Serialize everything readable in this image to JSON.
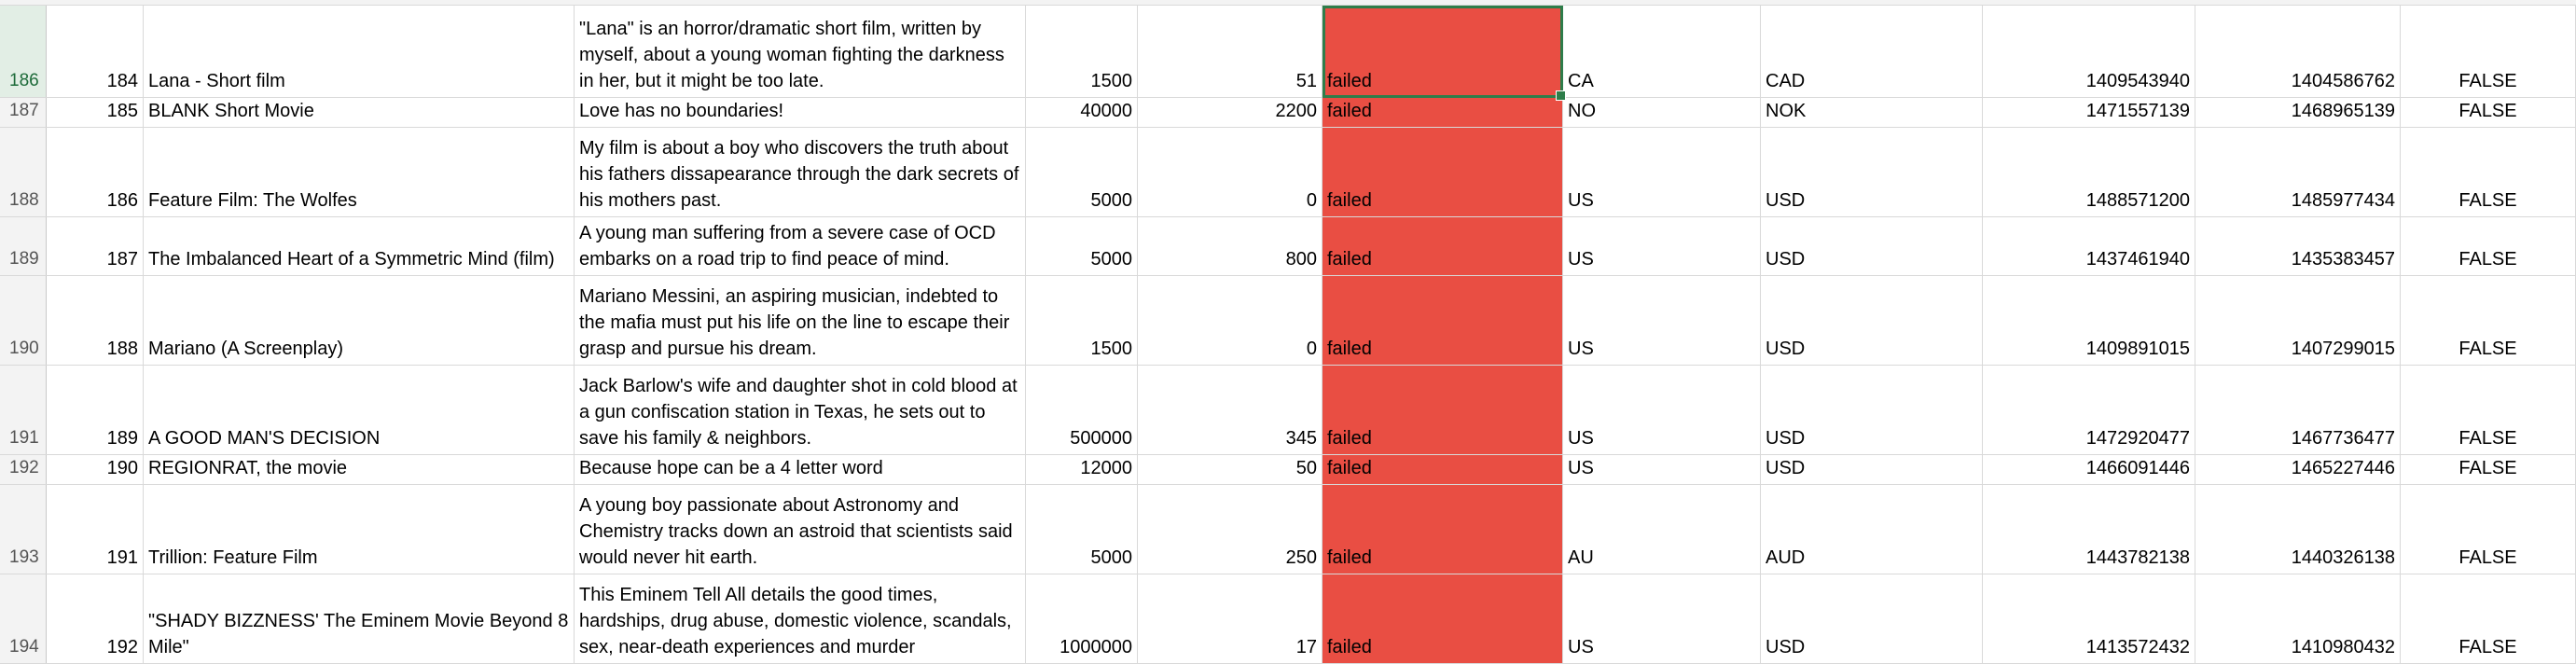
{
  "accent_colors": {
    "failed_fill": "#e94e43",
    "selection": "#2e7d4a"
  },
  "rows": [
    {
      "rownum": "186",
      "id": "184",
      "name": "Lana - Short film",
      "blurb": "\"Lana\" is an horror/dramatic short film, written by myself, about a young woman fighting the darkness in her, but it might be too late.",
      "goal": "1500",
      "pledged": "51",
      "state": "failed",
      "country": "CA",
      "currency": "CAD",
      "deadline": "1409543940",
      "launched": "1404586762",
      "flag": "FALSE"
    },
    {
      "rownum": "187",
      "id": "185",
      "name": "BLANK Short Movie",
      "blurb": "Love has no boundaries!",
      "goal": "40000",
      "pledged": "2200",
      "state": "failed",
      "country": "NO",
      "currency": "NOK",
      "deadline": "1471557139",
      "launched": "1468965139",
      "flag": "FALSE"
    },
    {
      "rownum": "188",
      "id": "186",
      "name": "Feature Film: The Wolfes",
      "blurb": "My film is about a boy who discovers the truth about his fathers dissapearance through the dark secrets of his mothers past.",
      "goal": "5000",
      "pledged": "0",
      "state": "failed",
      "country": "US",
      "currency": "USD",
      "deadline": "1488571200",
      "launched": "1485977434",
      "flag": "FALSE"
    },
    {
      "rownum": "189",
      "id": "187",
      "name": "The Imbalanced Heart of a Symmetric Mind (film)",
      "blurb": "A young man suffering from a severe case of OCD embarks on a road trip to find peace of mind.",
      "goal": "5000",
      "pledged": "800",
      "state": "failed",
      "country": "US",
      "currency": "USD",
      "deadline": "1437461940",
      "launched": "1435383457",
      "flag": "FALSE"
    },
    {
      "rownum": "190",
      "id": "188",
      "name": "Mariano (A Screenplay)",
      "blurb": "Mariano Messini, an aspiring musician, indebted to the mafia must put his life on the line to escape their grasp and pursue his dream.",
      "goal": "1500",
      "pledged": "0",
      "state": "failed",
      "country": "US",
      "currency": "USD",
      "deadline": "1409891015",
      "launched": "1407299015",
      "flag": "FALSE"
    },
    {
      "rownum": "191",
      "id": "189",
      "name": "A GOOD MAN'S DECISION",
      "blurb": "Jack Barlow's wife and daughter shot in cold blood at a gun confiscation station in Texas, he sets out to save his family & neighbors.",
      "goal": "500000",
      "pledged": "345",
      "state": "failed",
      "country": "US",
      "currency": "USD",
      "deadline": "1472920477",
      "launched": "1467736477",
      "flag": "FALSE"
    },
    {
      "rownum": "192",
      "id": "190",
      "name": "REGIONRAT, the movie",
      "blurb": "Because hope can be a 4 letter word",
      "goal": "12000",
      "pledged": "50",
      "state": "failed",
      "country": "US",
      "currency": "USD",
      "deadline": "1466091446",
      "launched": "1465227446",
      "flag": "FALSE"
    },
    {
      "rownum": "193",
      "id": "191",
      "name": "Trillion: Feature Film",
      "blurb": "A young boy passionate about Astronomy and Chemistry tracks down an astroid that scientists said would never hit earth.",
      "goal": "5000",
      "pledged": "250",
      "state": "failed",
      "country": "AU",
      "currency": "AUD",
      "deadline": "1443782138",
      "launched": "1440326138",
      "flag": "FALSE"
    },
    {
      "rownum": "194",
      "id": "192",
      "name": "\"SHADY BIZZNESS' The Eminem Movie Beyond 8 Mile\"",
      "blurb": "This Eminem Tell All details the good times, hardships, drug abuse, domestic violence, scandals, sex, near-death experiences and murder",
      "goal": "1000000",
      "pledged": "17",
      "state": "failed",
      "country": "US",
      "currency": "USD",
      "deadline": "1413572432",
      "launched": "1410980432",
      "flag": "FALSE"
    }
  ]
}
